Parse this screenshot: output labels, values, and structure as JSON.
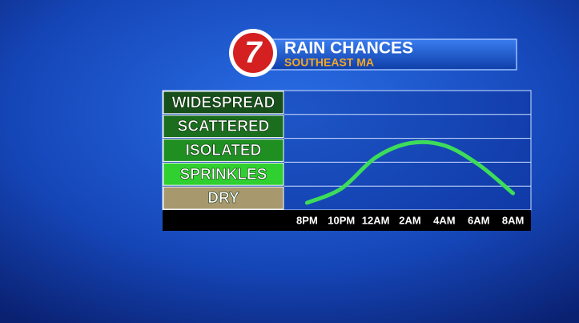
{
  "logo": "7",
  "chart_data": {
    "type": "line",
    "title": "RAIN CHANCES",
    "subtitle": "SOUTHEAST MA",
    "categories": [
      "8PM",
      "10PM",
      "12AM",
      "2AM",
      "4AM",
      "6AM",
      "8AM"
    ],
    "series": [
      {
        "name": "Rain chance",
        "color": "#3ddc5a",
        "values": [
          -0.2,
          0.4,
          1.7,
          2.3,
          2.2,
          1.4,
          0.2
        ]
      }
    ],
    "ylim": [
      -0.5,
      4.5
    ],
    "yticks": [
      {
        "value": 0,
        "label": "DRY"
      },
      {
        "value": 1,
        "label": "SPRINKLES"
      },
      {
        "value": 2,
        "label": "ISOLATED"
      },
      {
        "value": 3,
        "label": "SCATTERED"
      },
      {
        "value": 4,
        "label": "WIDESPREAD"
      }
    ],
    "tick_colors": [
      "#a8986e",
      "#2fd02f",
      "#1f8f22",
      "#1b6e1d",
      "#17501a"
    ]
  }
}
